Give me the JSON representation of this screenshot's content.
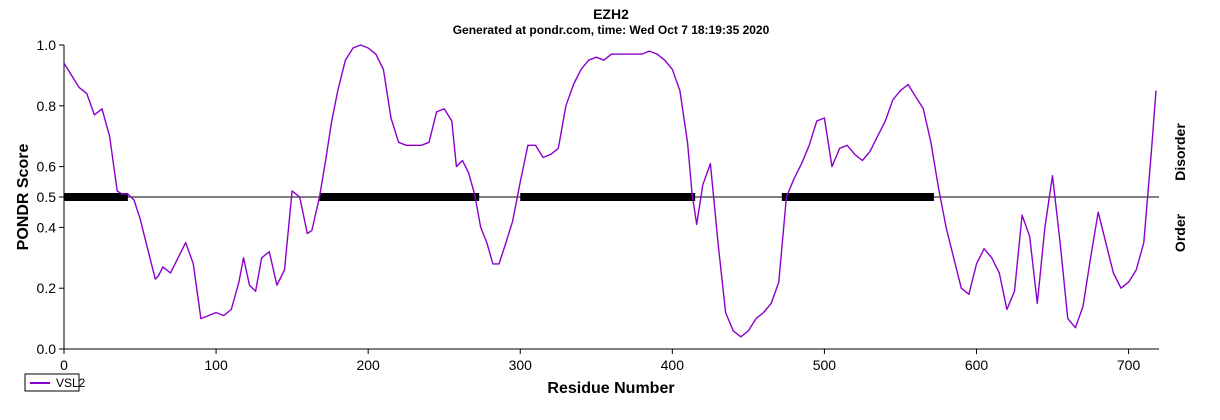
{
  "chart_data": {
    "type": "line",
    "title": "EZH2",
    "subtitle": "Generated at pondr.com, time: Wed Oct  7 18:19:35 2020",
    "xlabel": "Residue Number",
    "ylabel": "PONDR Score",
    "xlim": [
      0,
      720
    ],
    "ylim": [
      0,
      1.0
    ],
    "x_ticks": [
      "0",
      "100",
      "200",
      "300",
      "400",
      "500",
      "600",
      "700"
    ],
    "y_ticks": [
      "0.0",
      "0.2",
      "0.4",
      "0.5",
      "0.6",
      "0.8",
      "1.0"
    ],
    "threshold": 0.5,
    "side_labels": {
      "upper": "Disorder",
      "lower": "Order"
    },
    "line_color": "#8b00cc",
    "disordered_regions": [
      [
        0,
        42
      ],
      [
        168,
        273
      ],
      [
        300,
        415
      ],
      [
        472,
        572
      ]
    ],
    "series": [
      {
        "name": "VSL2",
        "x": [
          0,
          5,
          10,
          15,
          20,
          25,
          30,
          35,
          38,
          42,
          46,
          50,
          55,
          60,
          62,
          65,
          70,
          75,
          80,
          85,
          90,
          95,
          100,
          105,
          110,
          115,
          118,
          122,
          126,
          130,
          135,
          140,
          145,
          150,
          155,
          160,
          163,
          168,
          172,
          176,
          180,
          185,
          190,
          195,
          200,
          205,
          210,
          215,
          220,
          225,
          230,
          235,
          240,
          245,
          250,
          255,
          258,
          262,
          266,
          270,
          274,
          278,
          282,
          286,
          290,
          295,
          300,
          305,
          310,
          315,
          320,
          325,
          330,
          335,
          340,
          345,
          350,
          355,
          360,
          370,
          380,
          385,
          390,
          395,
          400,
          405,
          410,
          413,
          416,
          420,
          425,
          430,
          435,
          440,
          445,
          450,
          455,
          460,
          465,
          470,
          475,
          480,
          485,
          490,
          495,
          500,
          505,
          510,
          515,
          520,
          525,
          530,
          535,
          540,
          545,
          550,
          555,
          560,
          565,
          570,
          575,
          580,
          585,
          590,
          595,
          600,
          605,
          610,
          615,
          620,
          625,
          630,
          635,
          640,
          645,
          650,
          655,
          660,
          665,
          670,
          675,
          680,
          685,
          690,
          695,
          700,
          705,
          710,
          715,
          718
        ],
        "values": [
          0.94,
          0.9,
          0.86,
          0.84,
          0.77,
          0.79,
          0.7,
          0.52,
          0.51,
          0.51,
          0.49,
          0.43,
          0.33,
          0.23,
          0.24,
          0.27,
          0.25,
          0.3,
          0.35,
          0.28,
          0.1,
          0.11,
          0.12,
          0.11,
          0.13,
          0.22,
          0.3,
          0.21,
          0.19,
          0.3,
          0.32,
          0.21,
          0.26,
          0.52,
          0.5,
          0.38,
          0.39,
          0.5,
          0.62,
          0.75,
          0.85,
          0.95,
          0.99,
          1.0,
          0.99,
          0.97,
          0.92,
          0.76,
          0.68,
          0.67,
          0.67,
          0.67,
          0.68,
          0.78,
          0.79,
          0.75,
          0.6,
          0.62,
          0.58,
          0.51,
          0.4,
          0.35,
          0.28,
          0.28,
          0.34,
          0.42,
          0.55,
          0.67,
          0.67,
          0.63,
          0.64,
          0.66,
          0.8,
          0.87,
          0.92,
          0.95,
          0.96,
          0.95,
          0.97,
          0.97,
          0.97,
          0.98,
          0.97,
          0.95,
          0.92,
          0.85,
          0.68,
          0.51,
          0.41,
          0.54,
          0.61,
          0.35,
          0.12,
          0.06,
          0.04,
          0.06,
          0.1,
          0.12,
          0.15,
          0.22,
          0.5,
          0.56,
          0.61,
          0.67,
          0.75,
          0.76,
          0.6,
          0.66,
          0.67,
          0.64,
          0.62,
          0.65,
          0.7,
          0.75,
          0.82,
          0.85,
          0.87,
          0.83,
          0.79,
          0.68,
          0.53,
          0.4,
          0.3,
          0.2,
          0.18,
          0.28,
          0.33,
          0.3,
          0.25,
          0.13,
          0.19,
          0.44,
          0.37,
          0.15,
          0.4,
          0.57,
          0.35,
          0.1,
          0.07,
          0.14,
          0.3,
          0.45,
          0.35,
          0.25,
          0.2,
          0.22,
          0.26,
          0.35,
          0.65,
          0.85
        ]
      }
    ]
  }
}
